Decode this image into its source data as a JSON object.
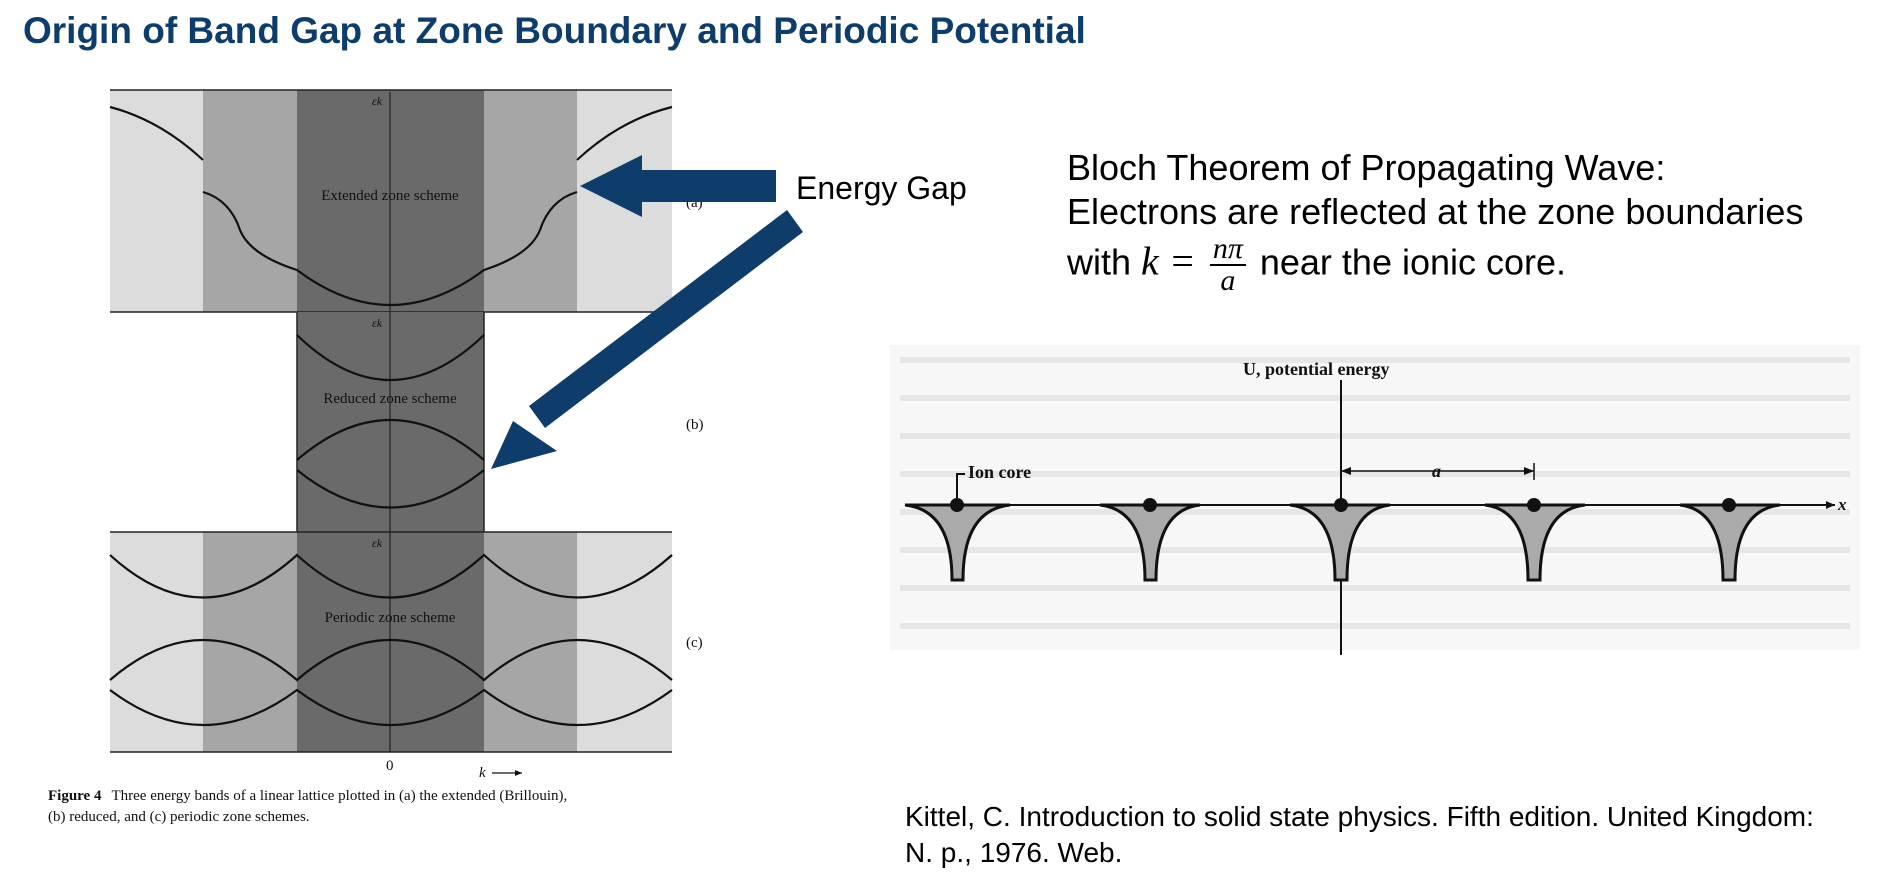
{
  "title": "Origin of Band Gap at Zone Boundary and Periodic Potential",
  "band_figure": {
    "panels": [
      {
        "id": "a",
        "label": "(a)",
        "scheme": "Extended zone scheme",
        "axis": "εk"
      },
      {
        "id": "b",
        "label": "(b)",
        "scheme": "Reduced zone scheme",
        "axis": "εk"
      },
      {
        "id": "c",
        "label": "(c)",
        "scheme": "Periodic zone scheme",
        "axis": "εk"
      }
    ],
    "origin_label": "0",
    "k_label": "k",
    "caption_bold": "Figure 4",
    "caption_line1": "Three energy bands of a linear lattice plotted in (a) the extended (Brillouin),",
    "caption_line2": "(b) reduced, and (c) periodic zone schemes."
  },
  "annotation": {
    "energy_gap_label": "Energy Gap",
    "arrow_color": "#0e3d6b"
  },
  "bloch": {
    "line1": "Bloch Theorem of Propagating Wave:",
    "line2": "Electrons are reflected at the zone boundaries",
    "line3_pre": "with",
    "line3_math": "k =",
    "frac_num": "nπ",
    "frac_den": "a",
    "line3_post": "near the ionic core."
  },
  "potential_figure": {
    "y_label": "U, potential energy",
    "ion_core_label": "Ion core",
    "spacing_label": "a",
    "x_label": "x"
  },
  "citation": {
    "line1": "Kittel, C. Introduction to solid state physics. Fifth edition. United Kingdom:",
    "line2": "N. p., 1976. Web."
  },
  "colors": {
    "title": "#0e3d6b",
    "arrow": "#0e3d6b",
    "ion_well": "#aaaaaa"
  }
}
